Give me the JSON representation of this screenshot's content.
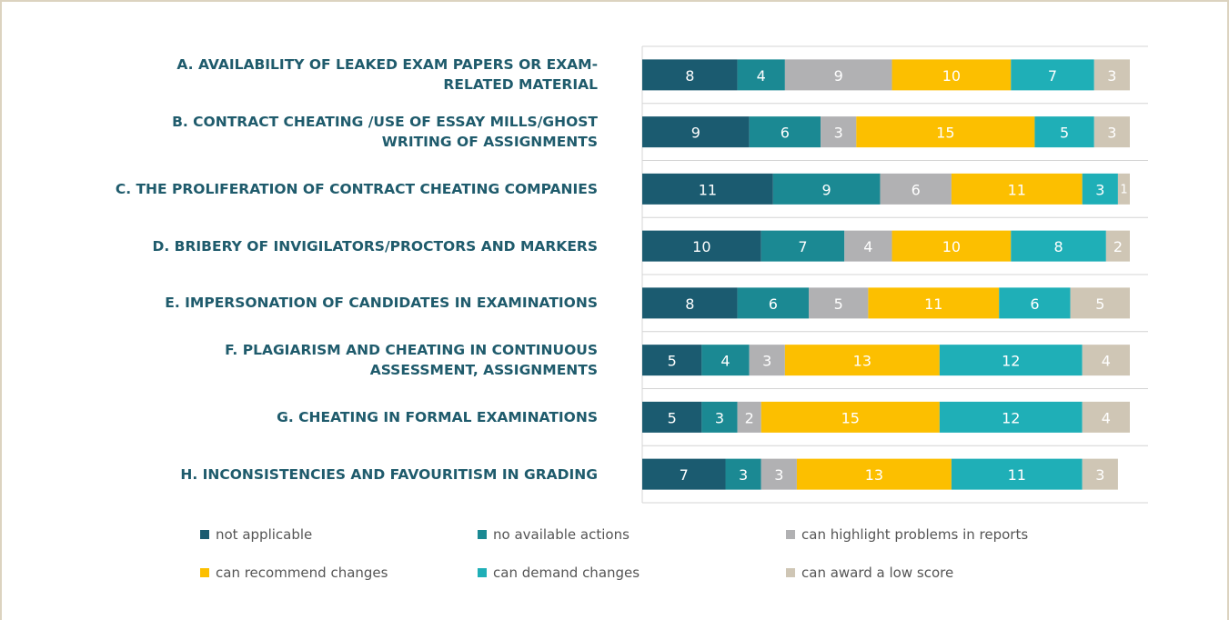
{
  "chart_data": {
    "type": "stacked-bar-horizontal",
    "categories": [
      "A. AVAILABILITY OF LEAKED EXAM PAPERS OR EXAM-\nRELATED MATERIAL",
      "B. CONTRACT CHEATING /USE OF ESSAY MILLS/GHOST\nWRITING OF ASSIGNMENTS",
      "C. THE PROLIFERATION OF CONTRACT CHEATING COMPANIES",
      "D. BRIBERY OF INVIGILATORS/PROCTORS AND MARKERS",
      "E. IMPERSONATION OF CANDIDATES IN EXAMINATIONS",
      "F. PLAGIARISM AND CHEATING IN CONTINUOUS\nASSESSMENT, ASSIGNMENTS",
      "G. CHEATING IN FORMAL EXAMINATIONS",
      "H. INCONSISTENCIES AND FAVOURITISM IN GRADING"
    ],
    "series": [
      {
        "name": "not applicable",
        "color": "#1b5b70",
        "values": [
          8,
          9,
          11,
          10,
          8,
          5,
          5,
          7
        ]
      },
      {
        "name": "no available actions",
        "color": "#1b8993",
        "values": [
          4,
          6,
          9,
          7,
          6,
          4,
          3,
          3
        ]
      },
      {
        "name": "can highlight problems in reports",
        "color": "#b1b1b3",
        "values": [
          9,
          3,
          6,
          4,
          5,
          3,
          2,
          3
        ]
      },
      {
        "name": "can recommend changes",
        "color": "#fcbf00",
        "values": [
          10,
          15,
          11,
          10,
          11,
          13,
          15,
          13
        ]
      },
      {
        "name": "can demand changes",
        "color": "#1fafb7",
        "values": [
          7,
          5,
          3,
          8,
          6,
          12,
          12,
          11
        ]
      },
      {
        "name": "can award a low score",
        "color": "#cfc6b5",
        "values": [
          3,
          3,
          1,
          2,
          5,
          4,
          4,
          3
        ]
      }
    ]
  }
}
